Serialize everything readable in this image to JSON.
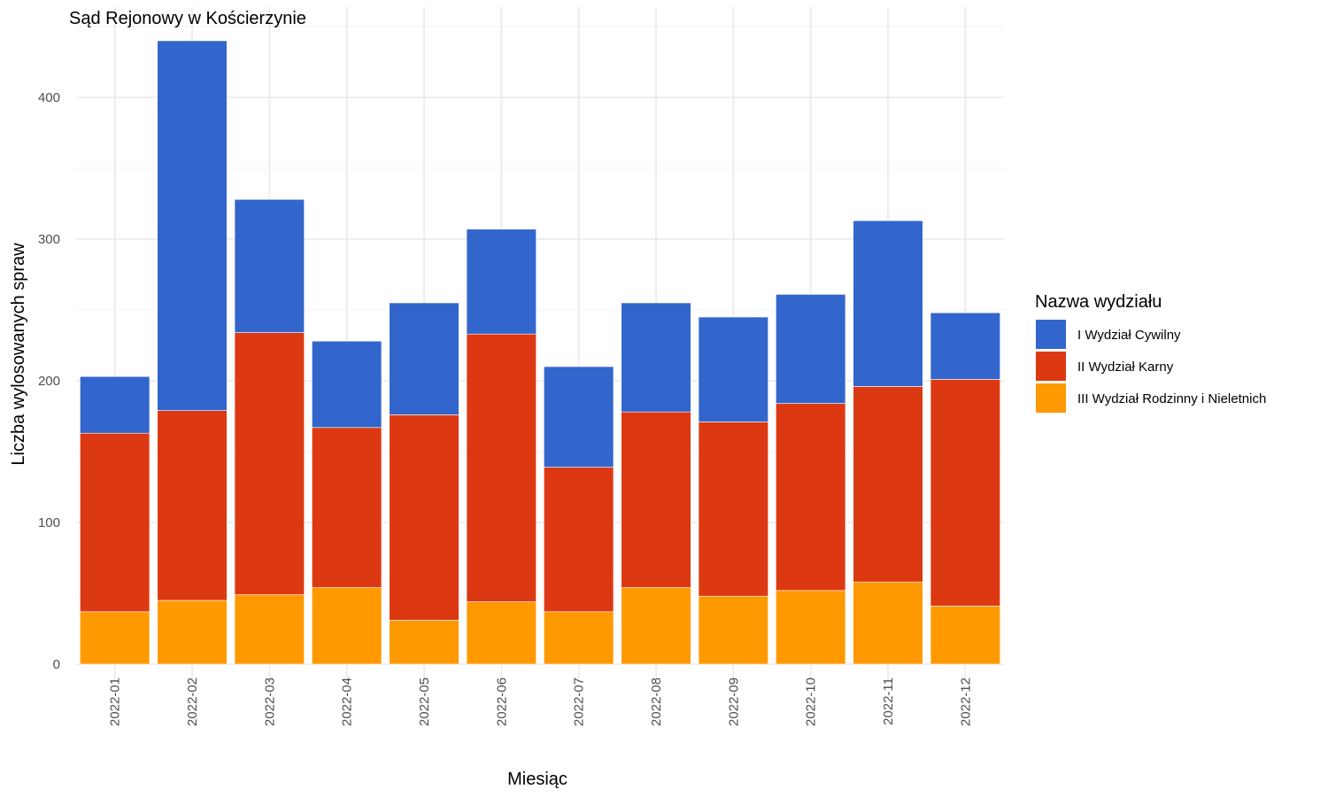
{
  "chart_data": {
    "type": "bar",
    "stacked": true,
    "title": "Sąd Rejonowy w Kościerzynie",
    "xlabel": "Miesiąc",
    "ylabel": "Liczba wylosowanych spraw",
    "ylim": [
      0,
      440
    ],
    "y_ticks": [
      0,
      100,
      200,
      300,
      400
    ],
    "grid": true,
    "legend_position": "right",
    "legend_title": "Nazwa wydziału",
    "categories": [
      "2022-01",
      "2022-02",
      "2022-03",
      "2022-04",
      "2022-05",
      "2022-06",
      "2022-07",
      "2022-08",
      "2022-09",
      "2022-10",
      "2022-11",
      "2022-12"
    ],
    "series": [
      {
        "name": "III Wydział Rodzinny i Nieletnich",
        "color": "#ff9900",
        "values": [
          37,
          45,
          49,
          54,
          31,
          44,
          37,
          54,
          48,
          52,
          58,
          41
        ]
      },
      {
        "name": "II Wydział Karny",
        "color": "#dc3912",
        "values": [
          126,
          134,
          185,
          113,
          145,
          189,
          102,
          124,
          123,
          132,
          138,
          160
        ]
      },
      {
        "name": "I Wydział Cywilny",
        "color": "#3366cc",
        "values": [
          40,
          261,
          94,
          61,
          79,
          74,
          71,
          77,
          74,
          77,
          117,
          47
        ]
      }
    ],
    "legend_order": [
      "I Wydział Cywilny",
      "II Wydział Karny",
      "III Wydział Rodzinny i Nieletnich"
    ]
  }
}
